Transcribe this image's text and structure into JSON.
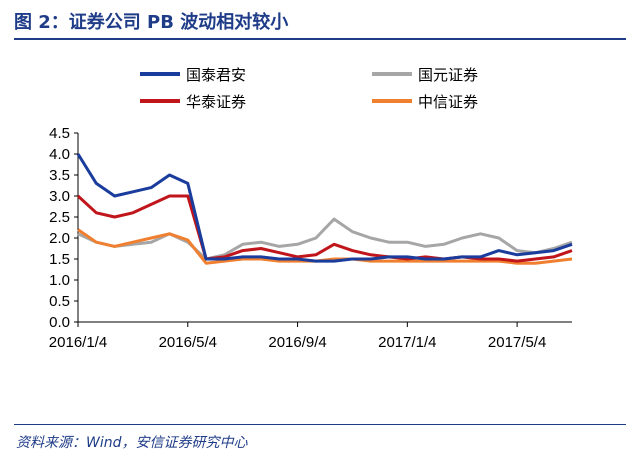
{
  "header": {
    "title": "图 2：证券公司 PB 波动相对较小"
  },
  "footer": {
    "source": "资料来源：Wind，安信证券研究中心"
  },
  "chart_data": {
    "type": "line",
    "x": [
      "2016/1/4",
      "2016/1/25",
      "2016/2/15",
      "2016/3/7",
      "2016/3/28",
      "2016/4/18",
      "2016/5/4",
      "2016/5/25",
      "2016/6/15",
      "2016/7/6",
      "2016/7/27",
      "2016/8/17",
      "2016/9/4",
      "2016/9/25",
      "2016/10/16",
      "2016/11/6",
      "2016/11/27",
      "2016/12/18",
      "2017/1/4",
      "2017/1/25",
      "2017/2/15",
      "2017/3/8",
      "2017/3/29",
      "2017/4/19",
      "2017/5/4",
      "2017/5/25",
      "2017/6/15",
      "2017/7/6"
    ],
    "x_ticks": [
      "2016/1/4",
      "2016/5/4",
      "2016/9/4",
      "2017/1/4",
      "2017/5/4"
    ],
    "ylim": [
      0,
      4.5
    ],
    "y_ticks": [
      "0.0",
      "0.5",
      "1.0",
      "1.5",
      "2.0",
      "2.5",
      "3.0",
      "3.5",
      "4.0",
      "4.5"
    ],
    "series": [
      {
        "name": "国泰君安",
        "color": "#1a3c9c",
        "values": [
          4.0,
          3.3,
          3.0,
          3.1,
          3.2,
          3.5,
          3.3,
          1.5,
          1.5,
          1.55,
          1.55,
          1.5,
          1.5,
          1.45,
          1.45,
          1.5,
          1.5,
          1.55,
          1.55,
          1.5,
          1.5,
          1.55,
          1.55,
          1.7,
          1.6,
          1.65,
          1.7,
          1.85
        ]
      },
      {
        "name": "国元证券",
        "color": "#a6a6a6",
        "values": [
          2.1,
          1.9,
          1.8,
          1.85,
          1.9,
          2.1,
          1.9,
          1.5,
          1.6,
          1.85,
          1.9,
          1.8,
          1.85,
          2.0,
          2.45,
          2.15,
          2.0,
          1.9,
          1.9,
          1.8,
          1.85,
          2.0,
          2.1,
          2.0,
          1.7,
          1.65,
          1.75,
          1.9
        ]
      },
      {
        "name": "华泰证券",
        "color": "#c0161b",
        "values": [
          3.0,
          2.6,
          2.5,
          2.6,
          2.8,
          3.0,
          3.0,
          1.5,
          1.55,
          1.7,
          1.75,
          1.65,
          1.55,
          1.6,
          1.85,
          1.7,
          1.6,
          1.55,
          1.5,
          1.55,
          1.5,
          1.55,
          1.5,
          1.5,
          1.45,
          1.5,
          1.55,
          1.7
        ]
      },
      {
        "name": "中信证券",
        "color": "#f08030",
        "values": [
          2.2,
          1.9,
          1.8,
          1.9,
          2.0,
          2.1,
          1.95,
          1.4,
          1.45,
          1.5,
          1.5,
          1.45,
          1.45,
          1.45,
          1.5,
          1.5,
          1.45,
          1.45,
          1.45,
          1.45,
          1.45,
          1.45,
          1.45,
          1.45,
          1.4,
          1.4,
          1.45,
          1.5
        ]
      }
    ],
    "grid": false,
    "legend": "top"
  }
}
